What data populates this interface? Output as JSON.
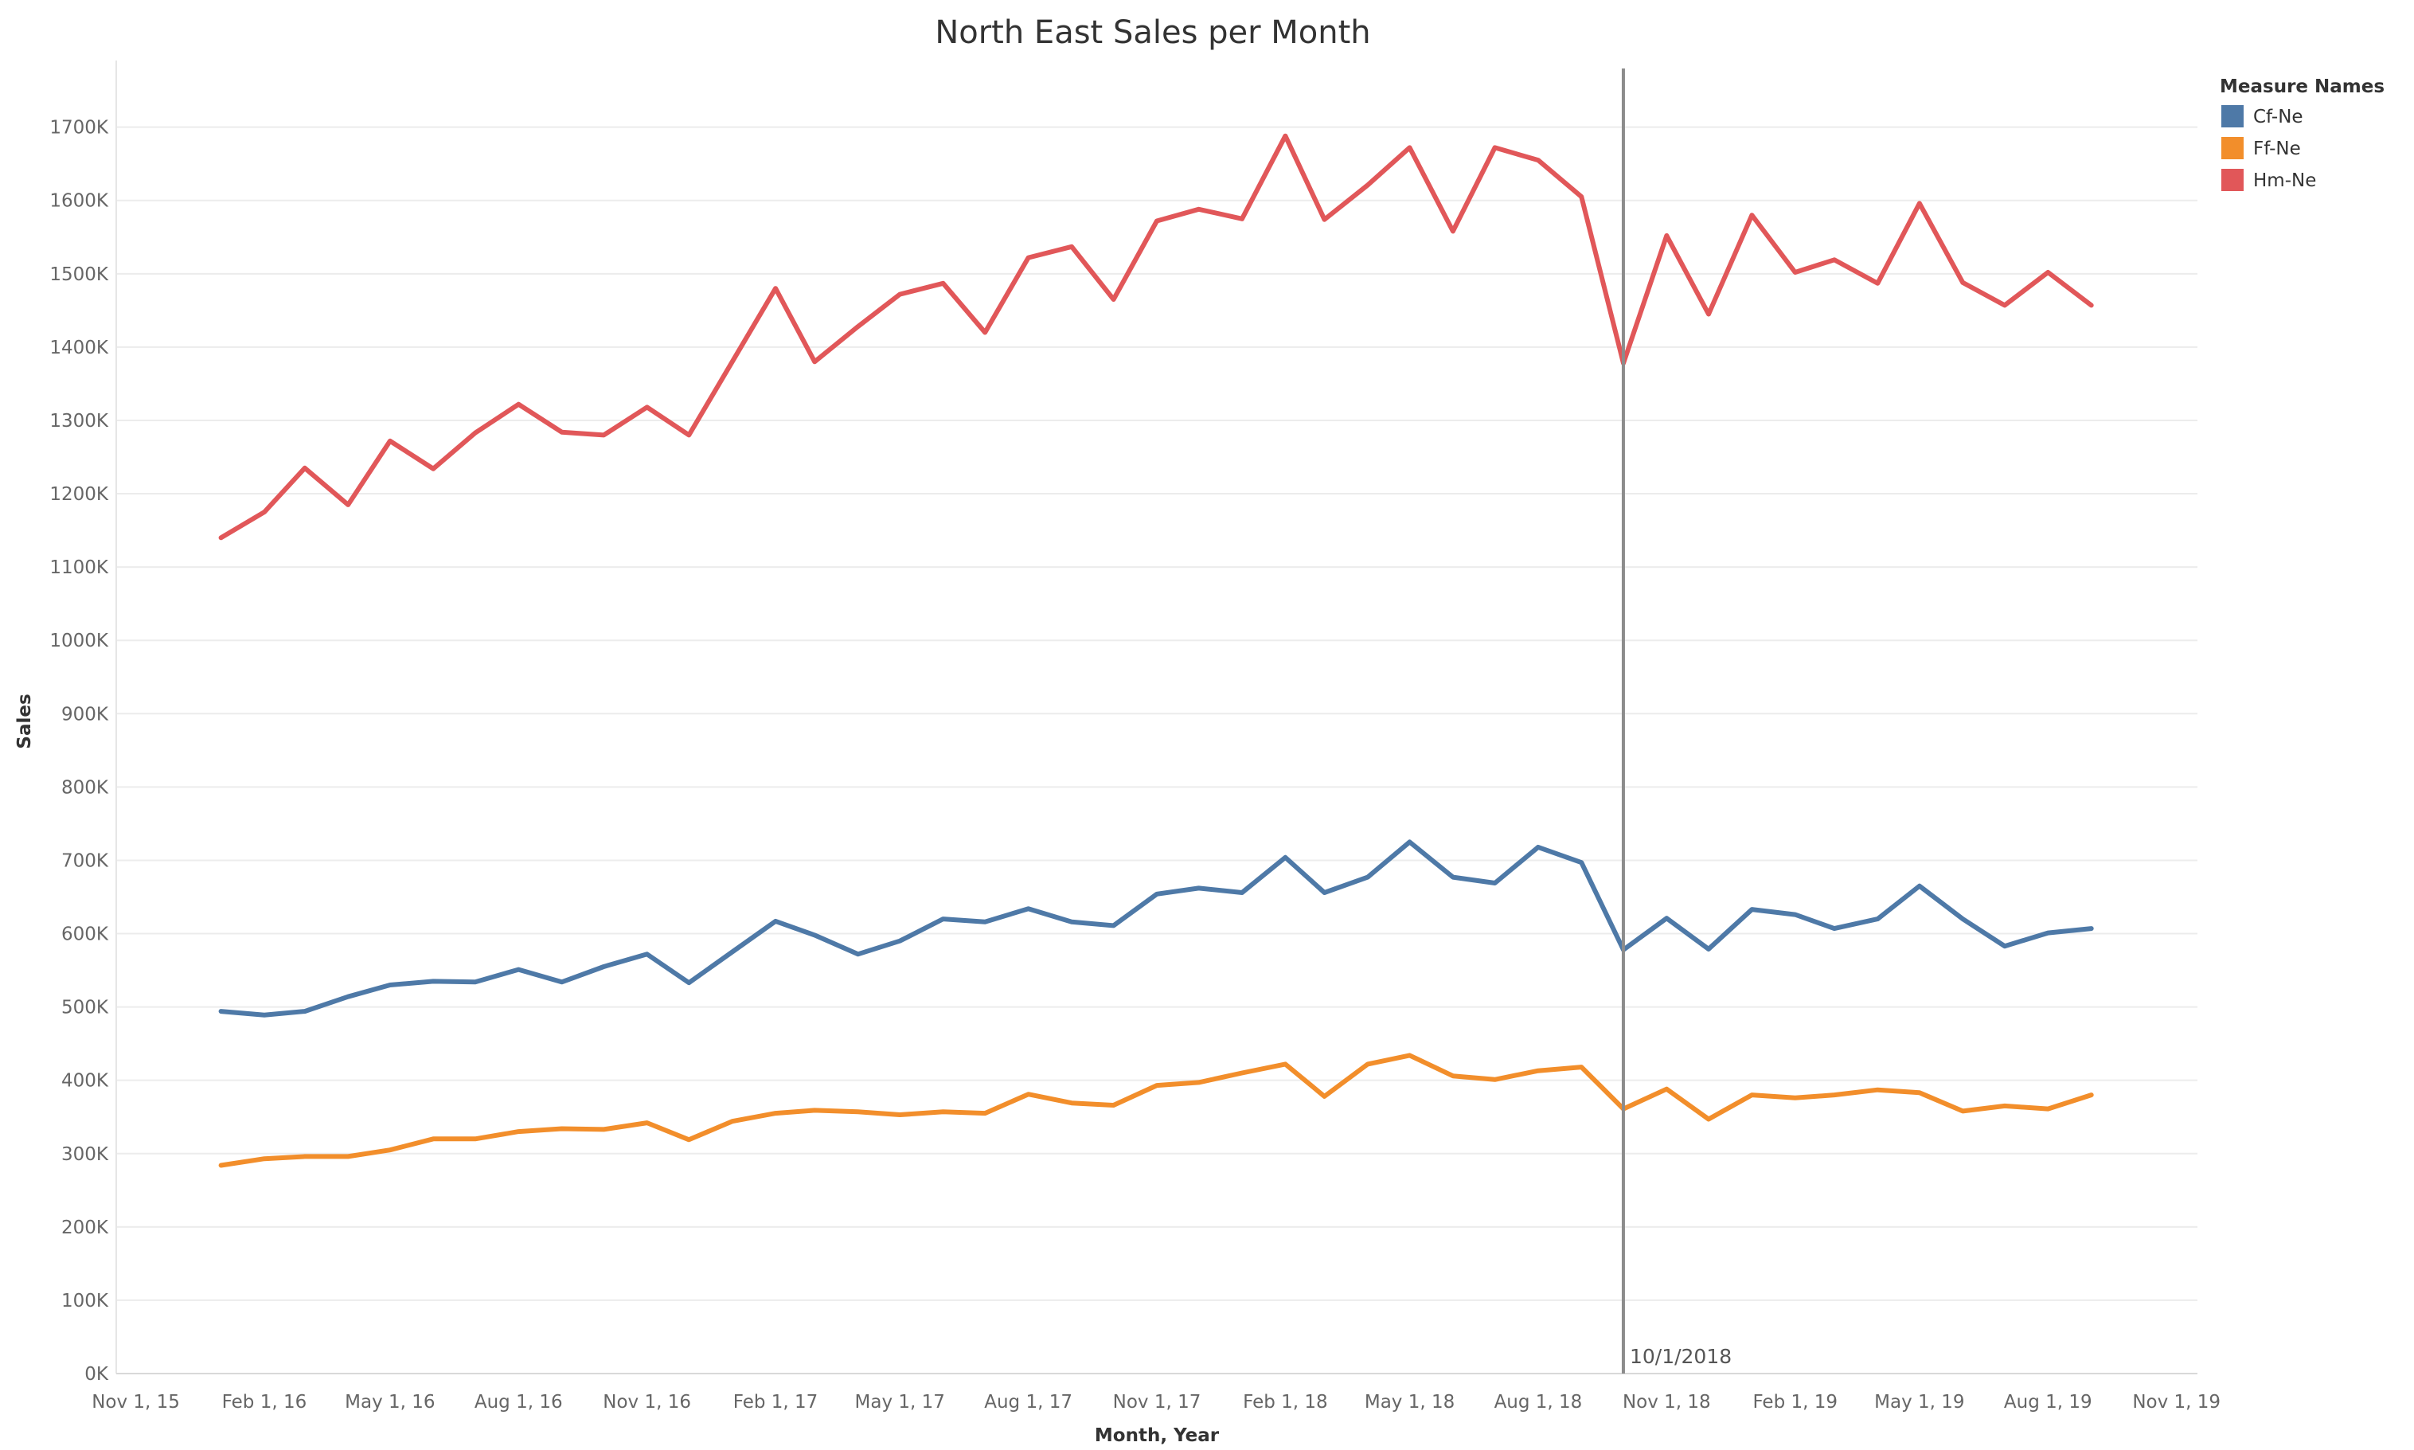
{
  "chart_data": {
    "type": "line",
    "title": "North East Sales per Month",
    "xlabel": "Month, Year",
    "ylabel": "Sales",
    "ylim": [
      0,
      1780000
    ],
    "y_ticks": [
      0,
      100000,
      200000,
      300000,
      400000,
      500000,
      600000,
      700000,
      800000,
      900000,
      1000000,
      1100000,
      1200000,
      1300000,
      1400000,
      1500000,
      1600000,
      1700000
    ],
    "y_tick_labels": [
      "0K",
      "100K",
      "200K",
      "300K",
      "400K",
      "500K",
      "600K",
      "700K",
      "800K",
      "900K",
      "1000K",
      "1100K",
      "1200K",
      "1300K",
      "1400K",
      "1500K",
      "1600K",
      "1700K"
    ],
    "x_range": [
      "2015-10-18",
      "2019-11-16"
    ],
    "x_ticks": [
      "2015-11-01",
      "2016-02-01",
      "2016-05-01",
      "2016-08-01",
      "2016-11-01",
      "2017-02-01",
      "2017-05-01",
      "2017-08-01",
      "2017-11-01",
      "2018-02-01",
      "2018-05-01",
      "2018-08-01",
      "2018-11-01",
      "2019-02-01",
      "2019-05-01",
      "2019-08-01",
      "2019-11-01"
    ],
    "x_tick_labels": [
      "Nov 1, 15",
      "Feb 1, 16",
      "May 1, 16",
      "Aug 1, 16",
      "Nov 1, 16",
      "Feb 1, 17",
      "May 1, 17",
      "Aug 1, 17",
      "Nov 1, 17",
      "Feb 1, 18",
      "May 1, 18",
      "Aug 1, 18",
      "Nov 1, 18",
      "Feb 1, 19",
      "May 1, 19",
      "Aug 1, 19",
      "Nov 1, 19"
    ],
    "x": [
      "2016-01-01",
      "2016-02-01",
      "2016-03-01",
      "2016-04-01",
      "2016-05-01",
      "2016-06-01",
      "2016-07-01",
      "2016-08-01",
      "2016-09-01",
      "2016-10-01",
      "2016-11-01",
      "2016-12-01",
      "2017-01-01",
      "2017-02-01",
      "2017-03-01",
      "2017-04-01",
      "2017-05-01",
      "2017-06-01",
      "2017-07-01",
      "2017-08-01",
      "2017-09-01",
      "2017-10-01",
      "2017-11-01",
      "2017-12-01",
      "2018-01-01",
      "2018-02-01",
      "2018-03-01",
      "2018-04-01",
      "2018-05-01",
      "2018-06-01",
      "2018-07-01",
      "2018-08-01",
      "2018-09-01",
      "2018-10-01",
      "2018-11-01",
      "2018-12-01",
      "2019-01-01",
      "2019-02-01",
      "2019-03-01",
      "2019-04-01",
      "2019-05-01",
      "2019-06-01",
      "2019-07-01",
      "2019-08-01",
      "2019-09-01"
    ],
    "series": [
      {
        "name": "Hm-Ne",
        "color": "#e15759",
        "values": [
          1140000,
          1175000,
          1235000,
          1185000,
          1272000,
          1234000,
          1283000,
          1322000,
          1284000,
          1280000,
          1318000,
          1280000,
          1380000,
          1480000,
          1380000,
          1428000,
          1472000,
          1487000,
          1420000,
          1522000,
          1537000,
          1465000,
          1572000,
          1588000,
          1575000,
          1688000,
          1574000,
          1621000,
          1672000,
          1558000,
          1672000,
          1655000,
          1605000,
          1378000,
          1552000,
          1445000,
          1580000,
          1502000,
          1519000,
          1487000,
          1596000,
          1488000,
          1457000,
          1502000,
          1457000
        ]
      },
      {
        "name": "Cf-Ne",
        "color": "#4e79a7",
        "values": [
          494000,
          489000,
          494000,
          514000,
          530000,
          535000,
          534000,
          551000,
          534000,
          555000,
          572000,
          533000,
          575000,
          617000,
          598000,
          572000,
          590000,
          620000,
          616000,
          634000,
          616000,
          611000,
          654000,
          662000,
          656000,
          704000,
          656000,
          677000,
          725000,
          677000,
          669000,
          718000,
          697000,
          578000,
          621000,
          579000,
          633000,
          626000,
          607000,
          620000,
          665000,
          620000,
          583000,
          601000,
          607000
        ]
      },
      {
        "name": "Ff-Ne",
        "color": "#f28e2b",
        "values": [
          284000,
          293000,
          296000,
          296000,
          305000,
          320000,
          320000,
          330000,
          334000,
          333000,
          342000,
          319000,
          344000,
          355000,
          359000,
          357000,
          353000,
          357000,
          355000,
          381000,
          369000,
          366000,
          393000,
          397000,
          410000,
          422000,
          378000,
          422000,
          434000,
          406000,
          401000,
          413000,
          418000,
          361000,
          388000,
          347000,
          380000,
          376000,
          380000,
          387000,
          383000,
          358000,
          365000,
          361000,
          380000
        ]
      }
    ],
    "legend": {
      "title": "Measure Names",
      "placement": "top-right",
      "entries": [
        "Cf-Ne",
        "Ff-Ne",
        "Hm-Ne"
      ]
    },
    "reference_line": {
      "x": "2018-10-01",
      "label": "10/1/2018",
      "color": "#8c8c8c"
    },
    "grid": true
  }
}
